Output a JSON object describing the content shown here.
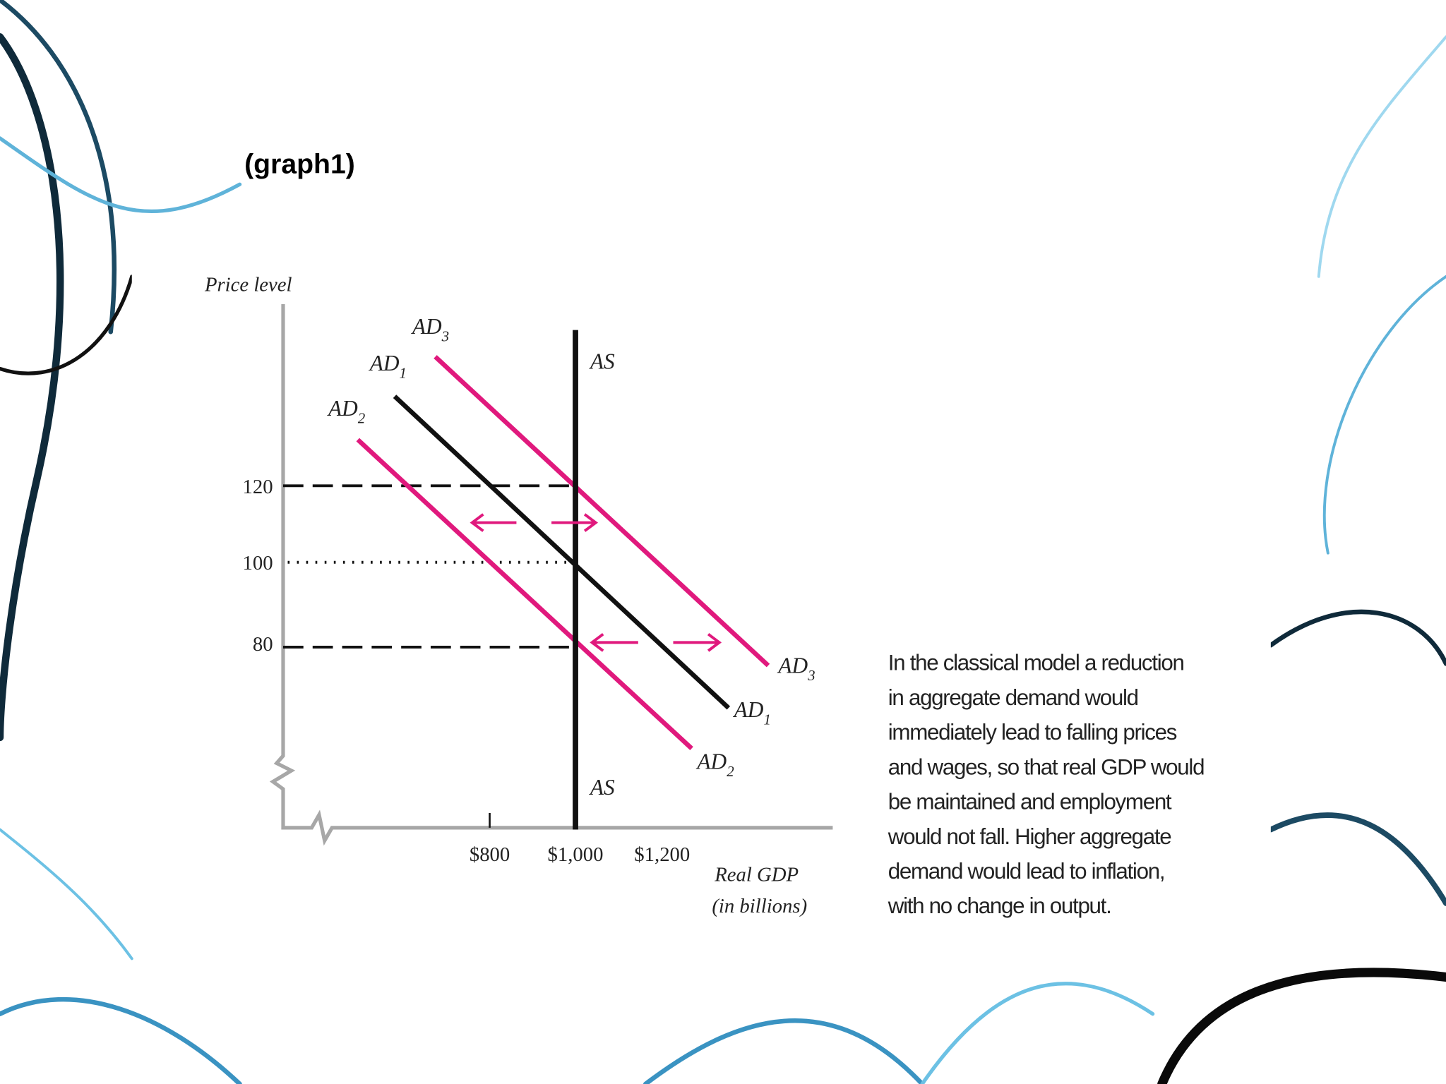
{
  "slide_label": "(graph1)",
  "graph": {
    "y_axis_label": "Price level",
    "x_axis_label": [
      "Real GDP",
      "(in billions)"
    ],
    "y_ticks": [
      "120",
      "100",
      "80"
    ],
    "x_ticks": [
      "$800",
      "$1,000",
      "$1,200"
    ],
    "curve_labels": {
      "ad3_top": {
        "base": "AD",
        "sub": "3"
      },
      "ad1_top": {
        "base": "AD",
        "sub": "1"
      },
      "ad2_top": {
        "base": "AD",
        "sub": "2"
      },
      "as_top": "AS",
      "ad3_end": {
        "base": "AD",
        "sub": "3"
      },
      "ad1_end": {
        "base": "AD",
        "sub": "1"
      },
      "ad2_end": {
        "base": "AD",
        "sub": "2"
      },
      "as_bottom": "AS"
    }
  },
  "caption": [
    "In the classical model a reduction",
    "in aggregate demand would",
    "immediately lead to falling prices",
    "and wages, so that real GDP would",
    "be maintained and employment",
    "would not fall. Higher aggregate",
    "demand would lead to inflation,",
    "with no change in output."
  ]
}
